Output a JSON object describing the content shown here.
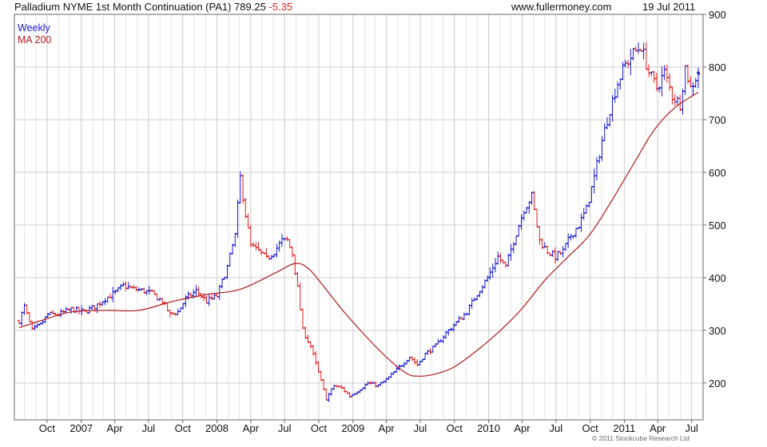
{
  "header": {
    "title": "Palladium NYME 1st Month Continuation (PA1) 789.25",
    "change": "-5.35",
    "site": "www.fullermoney.com",
    "date": "19 Jul 2011"
  },
  "legend": {
    "weekly": "Weekly",
    "ma": "MA 200"
  },
  "copyright": "© 2011 Stockcube Research Ltd",
  "colors": {
    "up": "#1a1ad6",
    "down": "#e02020",
    "ma": "#b01a1a",
    "grid": "#cfcfcf",
    "axis": "#666666"
  },
  "chart_data": {
    "type": "candlestick (weekly price bars with moving average)",
    "title": "Palladium NYME 1st Month Continuation (PA1) 789.25 -5.35",
    "xlabel": "",
    "ylabel": "",
    "ylim": [
      130,
      900
    ],
    "yticks": [
      200,
      300,
      400,
      500,
      600,
      700,
      800,
      900
    ],
    "x_range": [
      "2006-07-18",
      "2011-07-19"
    ],
    "x_ticks": [
      {
        "label": "Oct",
        "date": "2006-10-01"
      },
      {
        "label": "2007",
        "date": "2007-01-01"
      },
      {
        "label": "Apr",
        "date": "2007-04-01"
      },
      {
        "label": "Jul",
        "date": "2007-07-01"
      },
      {
        "label": "Oct",
        "date": "2007-10-01"
      },
      {
        "label": "2008",
        "date": "2008-01-01"
      },
      {
        "label": "Apr",
        "date": "2008-04-01"
      },
      {
        "label": "Jul",
        "date": "2008-07-01"
      },
      {
        "label": "Oct",
        "date": "2008-10-01"
      },
      {
        "label": "2009",
        "date": "2009-01-01"
      },
      {
        "label": "Apr",
        "date": "2009-04-01"
      },
      {
        "label": "Jul",
        "date": "2009-07-01"
      },
      {
        "label": "Oct",
        "date": "2009-10-01"
      },
      {
        "label": "2010",
        "date": "2010-01-01"
      },
      {
        "label": "Apr",
        "date": "2010-04-01"
      },
      {
        "label": "Jul",
        "date": "2010-07-01"
      },
      {
        "label": "Oct",
        "date": "2010-10-01"
      },
      {
        "label": "2011",
        "date": "2011-01-01"
      },
      {
        "label": "Apr",
        "date": "2011-04-01"
      },
      {
        "label": "Jul",
        "date": "2011-07-01"
      }
    ],
    "grid": true,
    "legend_position": "top-left",
    "series": [
      {
        "name": "Weekly",
        "price_path": [
          [
            "2006-07-18",
            318
          ],
          [
            "2006-08-01",
            345
          ],
          [
            "2006-08-22",
            300
          ],
          [
            "2006-09-12",
            310
          ],
          [
            "2006-10-03",
            330
          ],
          [
            "2006-10-31",
            330
          ],
          [
            "2006-12-05",
            340
          ],
          [
            "2007-01-09",
            335
          ],
          [
            "2007-02-06",
            345
          ],
          [
            "2007-03-06",
            360
          ],
          [
            "2007-04-03",
            372
          ],
          [
            "2007-04-24",
            385
          ],
          [
            "2007-05-22",
            378
          ],
          [
            "2007-06-19",
            375
          ],
          [
            "2007-07-10",
            370
          ],
          [
            "2007-08-07",
            355
          ],
          [
            "2007-08-28",
            330
          ],
          [
            "2007-09-18",
            335
          ],
          [
            "2007-10-09",
            360
          ],
          [
            "2007-11-06",
            375
          ],
          [
            "2007-12-04",
            355
          ],
          [
            "2008-01-01",
            365
          ],
          [
            "2008-01-29",
            420
          ],
          [
            "2008-02-19",
            480
          ],
          [
            "2008-03-04",
            590
          ],
          [
            "2008-03-18",
            520
          ],
          [
            "2008-04-01",
            460
          ],
          [
            "2008-04-22",
            450
          ],
          [
            "2008-05-13",
            435
          ],
          [
            "2008-06-03",
            450
          ],
          [
            "2008-06-24",
            470
          ],
          [
            "2008-07-08",
            470
          ],
          [
            "2008-07-22",
            445
          ],
          [
            "2008-08-05",
            380
          ],
          [
            "2008-08-19",
            300
          ],
          [
            "2008-09-09",
            270
          ],
          [
            "2008-09-30",
            220
          ],
          [
            "2008-10-21",
            170
          ],
          [
            "2008-11-11",
            195
          ],
          [
            "2008-12-02",
            190
          ],
          [
            "2008-12-23",
            175
          ],
          [
            "2009-01-13",
            185
          ],
          [
            "2009-02-10",
            200
          ],
          [
            "2009-03-10",
            195
          ],
          [
            "2009-04-07",
            210
          ],
          [
            "2009-05-05",
            230
          ],
          [
            "2009-06-02",
            250
          ],
          [
            "2009-06-23",
            235
          ],
          [
            "2009-07-14",
            255
          ],
          [
            "2009-08-11",
            270
          ],
          [
            "2009-09-08",
            295
          ],
          [
            "2009-10-06",
            315
          ],
          [
            "2009-11-03",
            335
          ],
          [
            "2009-12-01",
            370
          ],
          [
            "2009-12-29",
            400
          ],
          [
            "2010-01-26",
            440
          ],
          [
            "2010-02-16",
            420
          ],
          [
            "2010-03-09",
            470
          ],
          [
            "2010-04-06",
            530
          ],
          [
            "2010-04-27",
            555
          ],
          [
            "2010-05-18",
            470
          ],
          [
            "2010-06-08",
            450
          ],
          [
            "2010-06-29",
            440
          ],
          [
            "2010-07-20",
            450
          ],
          [
            "2010-08-10",
            480
          ],
          [
            "2010-08-31",
            500
          ],
          [
            "2010-09-21",
            530
          ],
          [
            "2010-10-12",
            590
          ],
          [
            "2010-11-02",
            660
          ],
          [
            "2010-11-23",
            720
          ],
          [
            "2010-12-14",
            770
          ],
          [
            "2011-01-04",
            805
          ],
          [
            "2011-01-25",
            825
          ],
          [
            "2011-02-15",
            840
          ],
          [
            "2011-03-08",
            790
          ],
          [
            "2011-03-29",
            760
          ],
          [
            "2011-04-19",
            790
          ],
          [
            "2011-05-10",
            745
          ],
          [
            "2011-05-31",
            730
          ],
          [
            "2011-06-14",
            800
          ],
          [
            "2011-06-28",
            760
          ],
          [
            "2011-07-19",
            789
          ]
        ]
      },
      {
        "name": "MA 200",
        "values": [
          [
            "2006-07-18",
            305
          ],
          [
            "2006-09-12",
            318
          ],
          [
            "2006-12-05",
            335
          ],
          [
            "2007-03-06",
            338
          ],
          [
            "2007-06-05",
            338
          ],
          [
            "2007-09-04",
            355
          ],
          [
            "2007-12-04",
            368
          ],
          [
            "2008-03-04",
            378
          ],
          [
            "2008-06-03",
            408
          ],
          [
            "2008-07-29",
            427
          ],
          [
            "2008-09-02",
            418
          ],
          [
            "2008-10-07",
            390
          ],
          [
            "2008-12-02",
            340
          ],
          [
            "2009-02-03",
            290
          ],
          [
            "2009-04-07",
            245
          ],
          [
            "2009-05-26",
            218
          ],
          [
            "2009-06-23",
            213
          ],
          [
            "2009-08-04",
            216
          ],
          [
            "2009-09-29",
            230
          ],
          [
            "2009-12-01",
            262
          ],
          [
            "2010-02-02",
            300
          ],
          [
            "2010-03-30",
            340
          ],
          [
            "2010-06-01",
            395
          ],
          [
            "2010-07-27",
            435
          ],
          [
            "2010-09-28",
            480
          ],
          [
            "2010-11-23",
            540
          ],
          [
            "2011-01-25",
            615
          ],
          [
            "2011-03-22",
            680
          ],
          [
            "2011-05-17",
            723
          ],
          [
            "2011-07-19",
            752
          ]
        ]
      }
    ]
  }
}
